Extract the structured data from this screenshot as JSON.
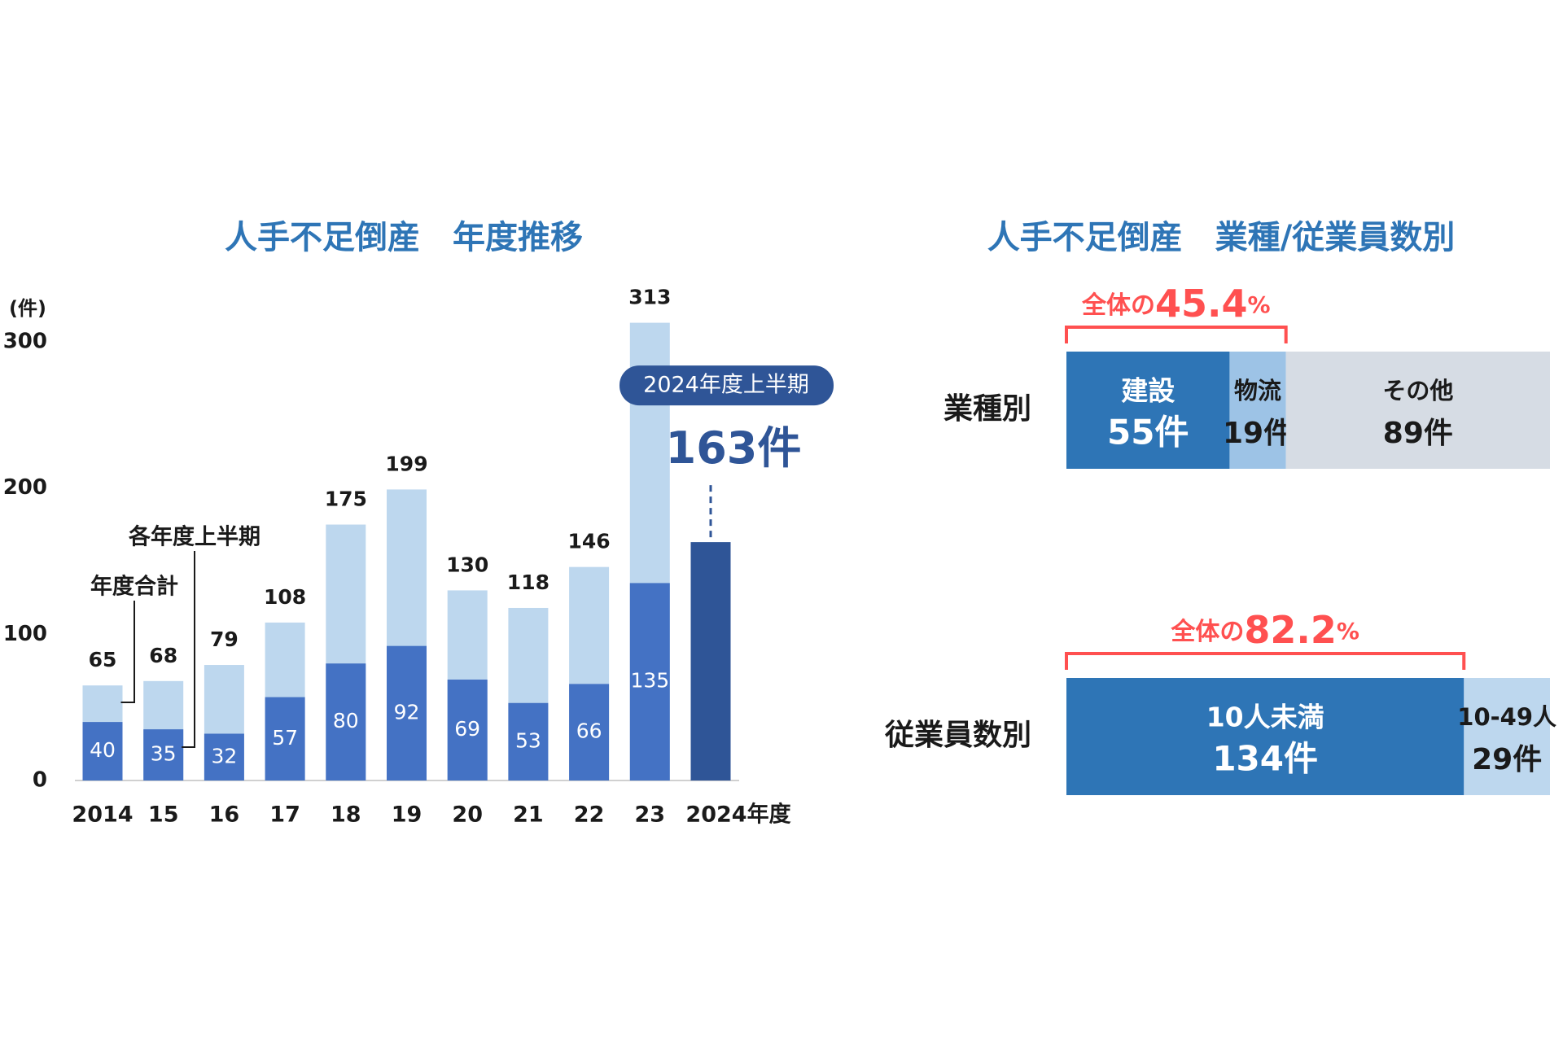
{
  "chart_data": [
    {
      "type": "bar",
      "title": "人手不足倒産　年度推移",
      "y_label": "(件)",
      "categories": [
        "2014",
        "15",
        "16",
        "17",
        "18",
        "19",
        "20",
        "21",
        "22",
        "23",
        "2024年度"
      ],
      "series": [
        {
          "name": "年度合計",
          "color": "#bdd7ee",
          "values": [
            65,
            68,
            79,
            108,
            175,
            199,
            130,
            118,
            146,
            313,
            null
          ]
        },
        {
          "name": "各年度上半期",
          "color": "#4472c4",
          "colors": [
            "#4472c4",
            "#4472c4",
            "#4472c4",
            "#4472c4",
            "#4472c4",
            "#4472c4",
            "#4472c4",
            "#4472c4",
            "#4472c4",
            "#4472c4",
            "#2f5597"
          ],
          "values": [
            40,
            35,
            32,
            57,
            80,
            92,
            69,
            53,
            66,
            135,
            163
          ],
          "value_labels": [
            null,
            null,
            null,
            null,
            null,
            null,
            null,
            null,
            null,
            null,
            "163件"
          ]
        }
      ],
      "annotation": "2024年度上半期",
      "ylim": [
        0,
        320
      ],
      "yticks": [
        0,
        100,
        200,
        300
      ],
      "grid": false
    },
    {
      "type": "stacked_bar_h",
      "title": "人手不足倒産　業種/従業員数別",
      "rows": [
        {
          "label": "業種別",
          "segments": [
            {
              "name": "建設",
              "value": 55,
              "value_label": "55件",
              "color": "#2e75b6",
              "text_color": "#ffffff"
            },
            {
              "name": "物流",
              "value": 19,
              "value_label": "19件",
              "color": "#9dc3e6",
              "text_color": "#1a1a1a"
            },
            {
              "name": "その他",
              "value": 89,
              "value_label": "89件",
              "color": "#d6dce4",
              "text_color": "#1a1a1a"
            }
          ],
          "share_prefix": "全体の",
          "share": 45.4,
          "share_suffix": "%"
        },
        {
          "label": "従業員数別",
          "segments": [
            {
              "name": "10人未満",
              "value": 134,
              "value_label": "134件",
              "color": "#2e75b6",
              "text_color": "#ffffff"
            },
            {
              "name": "10-49人",
              "value": 29,
              "value_label": "29件",
              "color": "#bdd7ee",
              "text_color": "#1a1a1a"
            }
          ],
          "share_prefix": "全体の",
          "share": 82.2,
          "share_suffix": "%"
        }
      ]
    }
  ]
}
